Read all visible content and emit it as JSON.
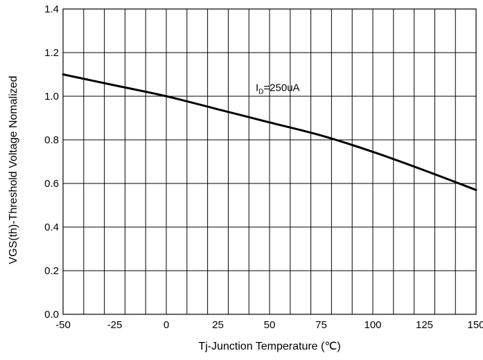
{
  "chart_data": {
    "type": "line",
    "xlabel": "Tj-Junction Temperature (℃)",
    "ylabel": "VGS(th)-Threshold Voltage Nomalized",
    "xlim": [
      -50,
      150
    ],
    "ylim": [
      0.0,
      1.4
    ],
    "x_ticks": [
      "-50",
      "-25",
      "0",
      "25",
      "50",
      "75",
      "100",
      "125",
      "150"
    ],
    "y_ticks": [
      "0.0",
      "0.2",
      "0.4",
      "0.6",
      "0.8",
      "1.0",
      "1.2",
      "1.4"
    ],
    "x_grid_step": 10,
    "y_grid_step": 0.2,
    "grid": true,
    "annotation": {
      "main": "I",
      "sub": "D",
      "rest": "=250uA",
      "x": 50,
      "y": 1.04
    },
    "series": [
      {
        "x": [
          -50,
          -25,
          0,
          25,
          50,
          75,
          100,
          125,
          150
        ],
        "y": [
          1.1,
          1.05,
          1.0,
          0.94,
          0.88,
          0.82,
          0.745,
          0.66,
          0.57
        ]
      }
    ]
  }
}
